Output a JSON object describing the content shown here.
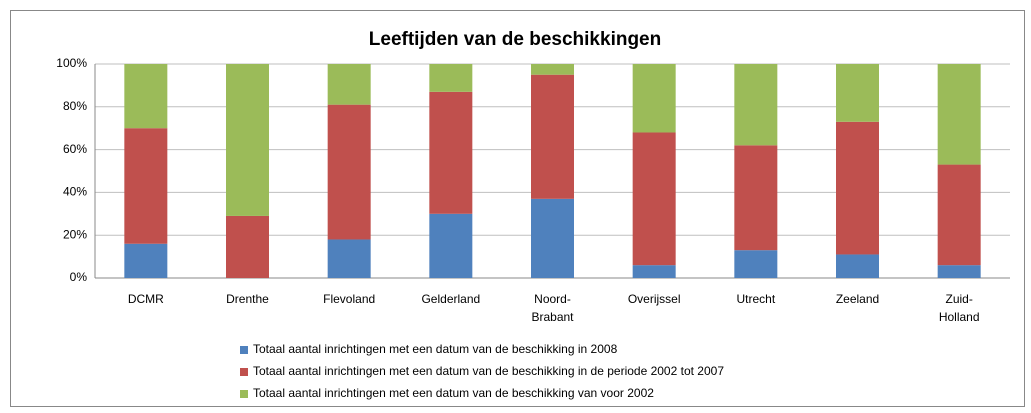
{
  "chart_data": {
    "type": "stacked_bar",
    "title": "Leeftijden van de beschikkingen",
    "categories": [
      "DCMR",
      "Drenthe",
      "Flevoland",
      "Gelderland",
      "Noord-Brabant",
      "Overijssel",
      "Utrecht",
      "Zeeland",
      "Zuid-Holland"
    ],
    "series": [
      {
        "name": "Totaal aantal inrichtingen met een datum van de beschikking in 2008",
        "color": "#4f81bd",
        "values": [
          16,
          0,
          18,
          30,
          37,
          6,
          13,
          11,
          6
        ]
      },
      {
        "name": "Totaal aantal inrichtingen met een datum van de beschikking in de periode 2002 tot 2007",
        "color": "#c0504d",
        "values": [
          54,
          29,
          63,
          57,
          58,
          62,
          49,
          62,
          47
        ]
      },
      {
        "name": "Totaal aantal inrichtingen met een datum van de beschikking van voor 2002",
        "color": "#9bbb59",
        "values": [
          30,
          71,
          19,
          13,
          5,
          32,
          38,
          27,
          47
        ]
      }
    ],
    "ylim": [
      0,
      100
    ],
    "yticks": [
      {
        "value": 0,
        "label": "0%"
      },
      {
        "value": 20,
        "label": "20%"
      },
      {
        "value": 40,
        "label": "40%"
      },
      {
        "value": 60,
        "label": "60%"
      },
      {
        "value": 80,
        "label": "80%"
      },
      {
        "value": 100,
        "label": "100%"
      }
    ],
    "grid": true
  }
}
